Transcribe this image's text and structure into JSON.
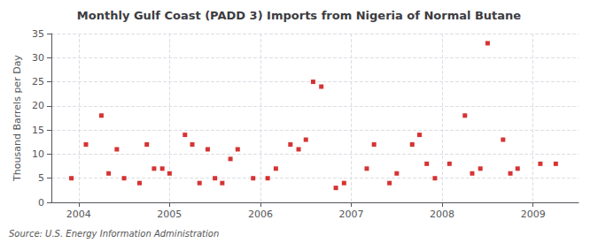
{
  "chart_data": {
    "type": "scatter",
    "title": "Monthly Gulf Coast (PADD 3) Imports from Nigeria of Normal Butane",
    "ylabel": "Thousand Barrels per Day",
    "source": "Source: U.S. Energy Information Administration",
    "color": "#cc0000",
    "marker": "square",
    "grid": true,
    "xlim": [
      2003.7,
      2009.5
    ],
    "xticks": [
      2004,
      2005,
      2006,
      2007,
      2008,
      2009
    ],
    "ylim": [
      0,
      35
    ],
    "yticks": [
      0,
      5,
      10,
      15,
      20,
      25,
      30,
      35
    ],
    "x": [
      2003.92,
      2004.08,
      2004.25,
      2004.33,
      2004.42,
      2004.5,
      2004.67,
      2004.75,
      2004.83,
      2004.92,
      2005.0,
      2005.17,
      2005.25,
      2005.33,
      2005.42,
      2005.5,
      2005.58,
      2005.67,
      2005.75,
      2005.92,
      2006.08,
      2006.17,
      2006.33,
      2006.42,
      2006.5,
      2006.58,
      2006.67,
      2006.83,
      2006.92,
      2007.17,
      2007.25,
      2007.42,
      2007.5,
      2007.67,
      2007.75,
      2007.83,
      2007.92,
      2008.08,
      2008.25,
      2008.33,
      2008.42,
      2008.5,
      2008.67,
      2008.75,
      2008.83,
      2009.08,
      2009.25
    ],
    "values": [
      5,
      12,
      18,
      6,
      11,
      5,
      4,
      12,
      7,
      7,
      6,
      14,
      12,
      4,
      11,
      5,
      4,
      9,
      11,
      5,
      5,
      7,
      12,
      11,
      13,
      25,
      24,
      3,
      4,
      7,
      12,
      4,
      6,
      12,
      14,
      8,
      5,
      8,
      18,
      6,
      7,
      33,
      13,
      6,
      7,
      8,
      8
    ]
  }
}
